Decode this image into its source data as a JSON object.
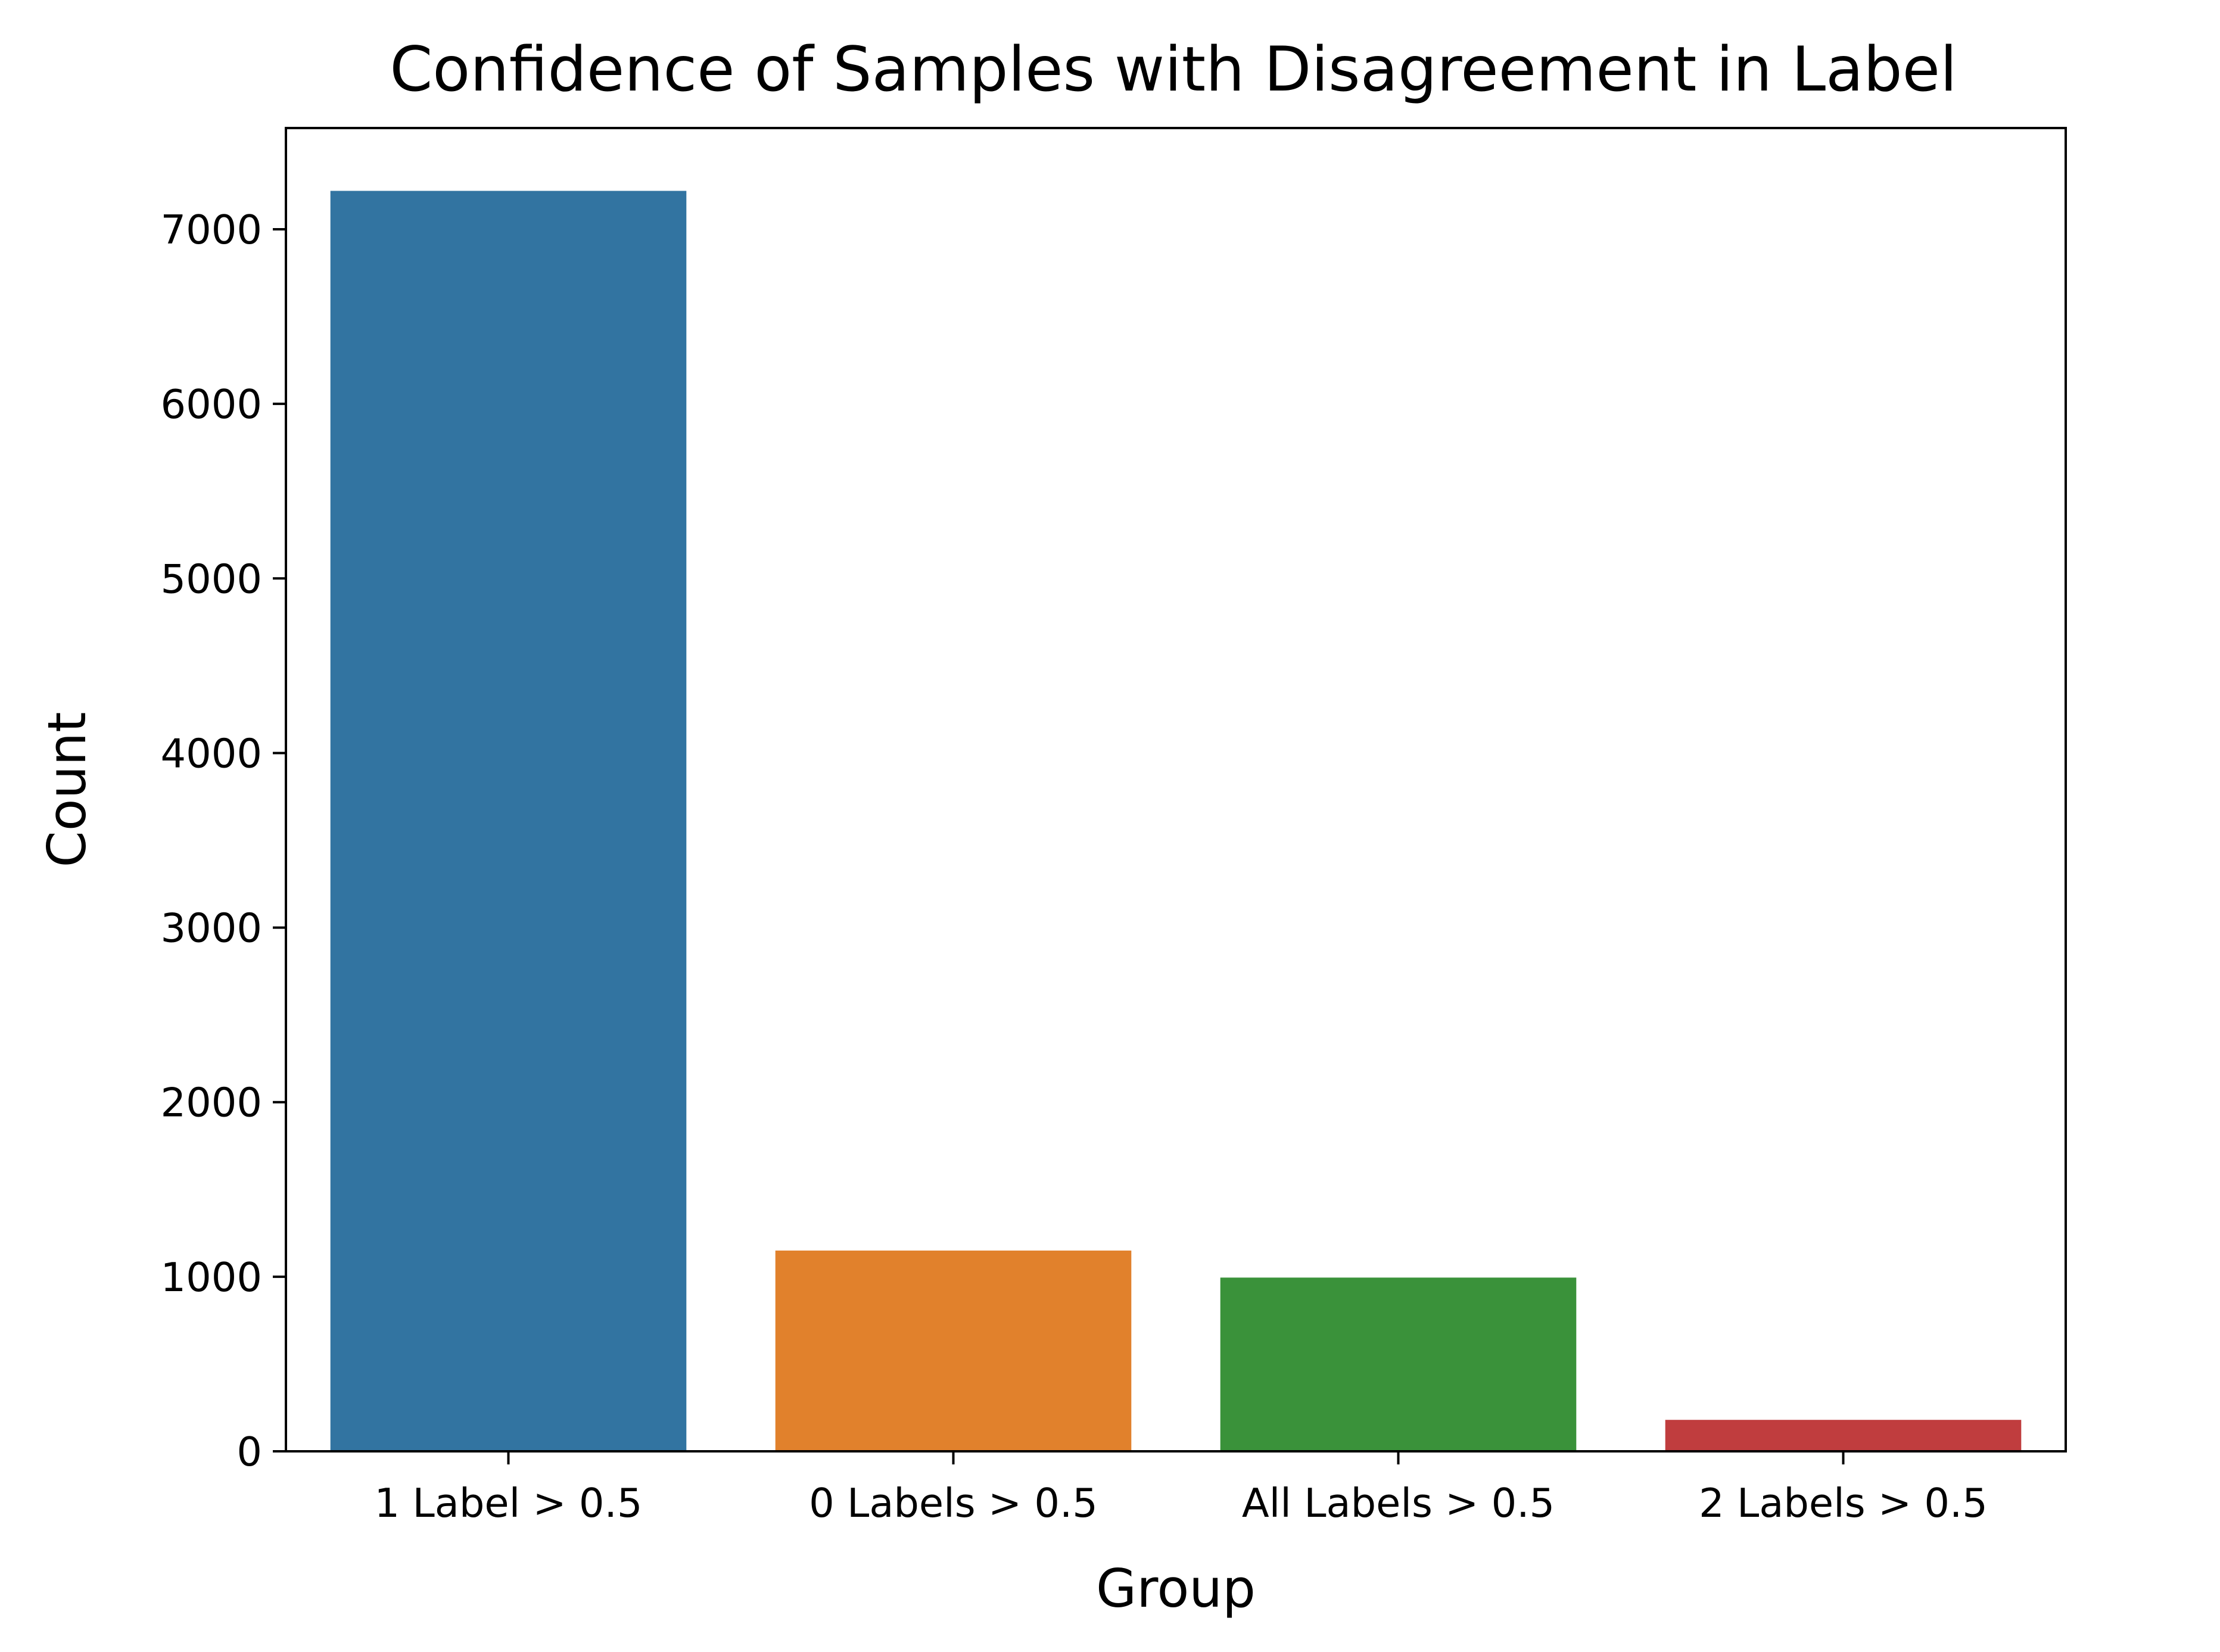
{
  "chart_data": {
    "type": "bar",
    "title": "Confidence of Samples with Disagreement in Label",
    "xlabel": "Group",
    "ylabel": "Count",
    "categories": [
      "1 Label > 0.5",
      "0 Labels > 0.5",
      "All Labels > 0.5",
      "2 Labels > 0.5"
    ],
    "values": [
      7220,
      1150,
      995,
      180
    ],
    "colors": [
      "#3274a1",
      "#e1812c",
      "#3a923a",
      "#c03d3e"
    ],
    "ylim": [
      0,
      7580
    ],
    "yticks": [
      0,
      1000,
      2000,
      3000,
      4000,
      5000,
      6000,
      7000
    ],
    "ytick_labels": [
      "0",
      "1000",
      "2000",
      "3000",
      "4000",
      "5000",
      "6000",
      "7000"
    ],
    "grid": false,
    "legend": "none"
  }
}
